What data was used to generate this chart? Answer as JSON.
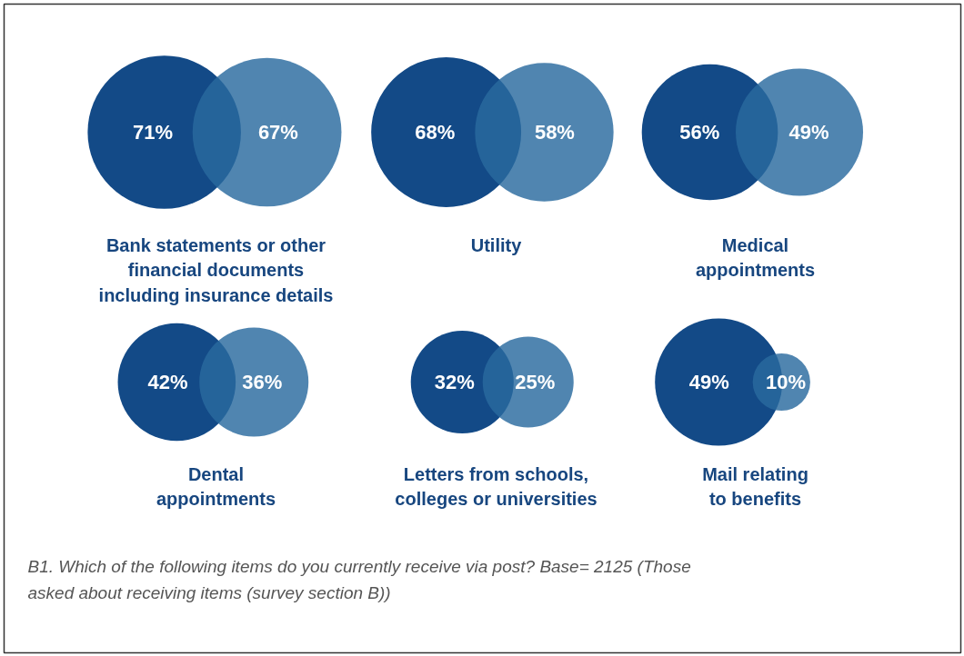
{
  "chart_data": {
    "type": "other",
    "categories": [
      "Bank statements or other\nfinancial documents\nincluding insurance details",
      "Utility",
      "Medical\nappointments",
      "Dental\nappointments",
      "Letters from schools,\ncolleges or universities",
      "Mail relating\nto benefits"
    ],
    "series": [
      {
        "color": "#134a87",
        "values": [
          71,
          68,
          56,
          42,
          32,
          49
        ],
        "value_labels": [
          "71%",
          "68%",
          "56%",
          "42%",
          "32%",
          "49%"
        ]
      },
      {
        "color": "#2a6a9f",
        "values": [
          67,
          58,
          49,
          36,
          25,
          10
        ],
        "value_labels": [
          "67%",
          "58%",
          "49%",
          "36%",
          "25%",
          "10%"
        ]
      }
    ],
    "annotations": [
      "B1. Which of the following items do you currently receive via post? Base= 2125 (Those asked about receiving items (survey section B))"
    ]
  }
}
